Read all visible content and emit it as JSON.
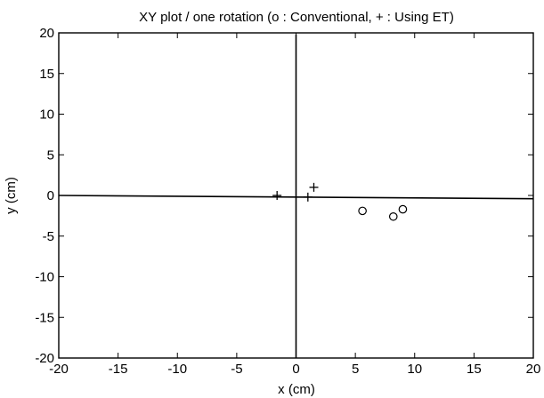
{
  "chart_data": {
    "type": "scatter",
    "title": "XY plot / one rotation (o : Conventional,  + : Using ET)",
    "xlabel": "x (cm)",
    "ylabel": "y (cm)",
    "xlim": [
      -20,
      20
    ],
    "ylim": [
      -20,
      20
    ],
    "xticks": [
      -20,
      -15,
      -10,
      -5,
      0,
      5,
      10,
      15,
      20
    ],
    "yticks": [
      -20,
      -15,
      -10,
      -5,
      0,
      5,
      10,
      15,
      20
    ],
    "grid": false,
    "series": [
      {
        "marker": "o",
        "points": [
          [
            5.6,
            -1.9
          ],
          [
            8.2,
            -2.6
          ],
          [
            9.0,
            -1.7
          ]
        ]
      },
      {
        "marker": "+",
        "points": [
          [
            -1.6,
            0.0
          ],
          [
            1.0,
            -0.2
          ],
          [
            1.5,
            1.0
          ]
        ]
      }
    ]
  }
}
